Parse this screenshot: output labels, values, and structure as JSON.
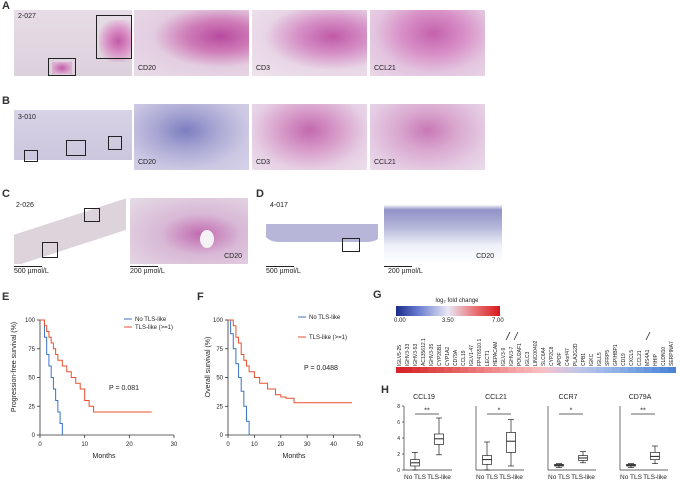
{
  "panels": {
    "A": {
      "letter": "A",
      "sample": "2-027",
      "stains": [
        "CD20",
        "CD3",
        "CCL21"
      ]
    },
    "B": {
      "letter": "B",
      "sample": "3-010",
      "stains": [
        "CD20",
        "CD3",
        "CCL21"
      ]
    },
    "C": {
      "letter": "C",
      "sample": "2-026",
      "stain": "CD20",
      "scale_low": "500 µmol/L",
      "scale_high": "200 µmol/L"
    },
    "D": {
      "letter": "D",
      "sample": "4-017",
      "stain": "CD20",
      "scale_low": "500 µmol/L",
      "scale_high": "200 µmol/L"
    },
    "G": {
      "letter": "G",
      "legend_title": "log₂ fold change",
      "legend_ticks": [
        "0.00",
        "3.50",
        "7.00"
      ],
      "genes": [
        "IGLV5-25",
        "IGHV3-33",
        "IGHV3-53",
        "AC135612.1",
        "IGHV3-35",
        "CYP26B1",
        "CYP1A2",
        "CD79A",
        "CCL19",
        "IGLV1-47",
        "FP476510.1",
        "LECT1",
        "HEPACAM",
        "IGLV3-9",
        "IGHV3-7",
        "POU2AF1",
        "IGLC3",
        "LINC00402",
        "SLC6A4",
        "CYP2C8",
        "APOF",
        "C4orf47",
        "PLA2G2D",
        "CPB1",
        "IGKC",
        "IGLL5",
        "SFRP5",
        "GPIHBP1",
        "CD19",
        "CXCL5",
        "CCL21",
        "MS4A1",
        "HHIP",
        "CLDN10",
        "SERPINA7"
      ],
      "gene_colors": [
        "#d7252a",
        "#d92a2e",
        "#dc3336",
        "#de3c3e",
        "#e04547",
        "#e24e50",
        "#e45759",
        "#e66062",
        "#e8696b",
        "#ea7274",
        "#ec7b7d",
        "#ee8586",
        "#f08e8f",
        "#f29798",
        "#f3a0a1",
        "#f5a9aa",
        "#f6b2b3",
        "#f7bbbc",
        "#f5c1c6",
        "#e9c3d1",
        "#dcc5db",
        "#d0c6e2",
        "#c5c5e6",
        "#b9c3e8",
        "#aec0ea",
        "#a4bbe9",
        "#9ab6e8",
        "#90b0e6",
        "#86aae4",
        "#7ca4e2",
        "#729ee0",
        "#6897de",
        "#5f90dc",
        "#5689d9",
        "#4d82d6"
      ]
    },
    "E": {
      "letter": "E",
      "ylabel": "Progression-free survival (%)",
      "xlabel": "Months",
      "legend": [
        "No TLS-like",
        "TLS-like (>=1)"
      ],
      "pvalue": "P = 0.081",
      "xticks": [
        "0",
        "10",
        "20",
        "30"
      ],
      "yticks": [
        "0",
        "25",
        "50",
        "75",
        "100"
      ]
    },
    "F": {
      "letter": "F",
      "ylabel": "Overall survival (%)",
      "xlabel": "Months",
      "legend": [
        "No TLS-like",
        "TLS-like (>=1)"
      ],
      "pvalue": "P = 0.0488",
      "xticks": [
        "0",
        "10",
        "20",
        "30",
        "40",
        "50"
      ],
      "yticks": [
        "0",
        "25",
        "50",
        "75",
        "100"
      ]
    },
    "H": {
      "letter": "H",
      "titles": [
        "CCL19",
        "CCL21",
        "CCR7",
        "CD79A"
      ],
      "sig": [
        "**",
        "*",
        "*",
        "**"
      ],
      "xlabels": [
        "No TLS",
        "TLS-like"
      ],
      "yticks": [
        "0",
        "2",
        "4",
        "6",
        "8"
      ]
    }
  },
  "chart_data": [
    {
      "type": "line",
      "title": "",
      "xlabel": "Months",
      "ylabel": "Progression-free survival (%)",
      "xlim": [
        0,
        30
      ],
      "ylim": [
        0,
        100
      ],
      "series": [
        {
          "name": "No TLS-like",
          "color": "#3b73c4",
          "x": [
            0,
            1,
            1.5,
            2,
            2.5,
            3,
            3.5,
            4,
            4.5,
            5
          ],
          "y": [
            100,
            85,
            70,
            60,
            50,
            40,
            30,
            20,
            10,
            0
          ]
        },
        {
          "name": "TLS-like (>=1)",
          "color": "#e8502e",
          "x": [
            0,
            1,
            1.5,
            2,
            2.5,
            3,
            3.5,
            4,
            5,
            6,
            7,
            8,
            9,
            10,
            11,
            12,
            25
          ],
          "y": [
            100,
            95,
            90,
            85,
            80,
            75,
            70,
            65,
            60,
            55,
            50,
            45,
            40,
            30,
            25,
            20,
            20
          ]
        }
      ]
    },
    {
      "type": "line",
      "title": "",
      "xlabel": "Months",
      "ylabel": "Overall survival (%)",
      "xlim": [
        0,
        50
      ],
      "ylim": [
        0,
        100
      ],
      "series": [
        {
          "name": "No TLS-like",
          "color": "#3b73c4",
          "x": [
            0,
            1,
            2,
            3,
            4,
            5,
            6,
            7,
            8
          ],
          "y": [
            100,
            88,
            75,
            62,
            50,
            38,
            25,
            12,
            0
          ]
        },
        {
          "name": "TLS-like (>=1)",
          "color": "#e8502e",
          "x": [
            0,
            2,
            3,
            4,
            5,
            6,
            7,
            8,
            10,
            12,
            15,
            18,
            20,
            22,
            25,
            40,
            47
          ],
          "y": [
            100,
            95,
            85,
            80,
            70,
            65,
            60,
            55,
            50,
            45,
            40,
            35,
            33,
            32,
            28,
            28,
            28
          ]
        }
      ]
    },
    {
      "type": "box",
      "title": "CCL19",
      "categories": [
        "No TLS",
        "TLS-like"
      ],
      "ylim": [
        0,
        8
      ],
      "series": [
        {
          "name": "No TLS",
          "min": 0,
          "q1": 0.5,
          "median": 0.9,
          "q3": 1.3,
          "max": 2.2
        },
        {
          "name": "TLS-like",
          "min": 1.9,
          "q1": 3.2,
          "median": 3.9,
          "q3": 4.5,
          "max": 6.5
        }
      ]
    },
    {
      "type": "box",
      "title": "CCL21",
      "categories": [
        "No TLS",
        "TLS-like"
      ],
      "ylim": [
        0,
        8
      ],
      "series": [
        {
          "name": "No TLS",
          "min": 0,
          "q1": 0.7,
          "median": 1.3,
          "q3": 1.8,
          "max": 3.5
        },
        {
          "name": "TLS-like",
          "min": 0.5,
          "q1": 2.2,
          "median": 3.6,
          "q3": 4.7,
          "max": 6.3
        }
      ]
    },
    {
      "type": "box",
      "title": "CCR7",
      "categories": [
        "No TLS",
        "TLS-like"
      ],
      "ylim": [
        0,
        8
      ],
      "series": [
        {
          "name": "No TLS",
          "min": 0.3,
          "q1": 0.5,
          "median": 0.6,
          "q3": 0.7,
          "max": 0.8
        },
        {
          "name": "TLS-like",
          "min": 0.9,
          "q1": 1.2,
          "median": 1.5,
          "q3": 1.8,
          "max": 2.3
        }
      ]
    },
    {
      "type": "box",
      "title": "CD79A",
      "categories": [
        "No TLS",
        "TLS-like"
      ],
      "ylim": [
        0,
        8
      ],
      "series": [
        {
          "name": "No TLS",
          "min": 0.3,
          "q1": 0.5,
          "median": 0.6,
          "q3": 0.7,
          "max": 0.8
        },
        {
          "name": "TLS-like",
          "min": 0.8,
          "q1": 1.3,
          "median": 1.7,
          "q3": 2.2,
          "max": 3.0
        }
      ]
    }
  ]
}
